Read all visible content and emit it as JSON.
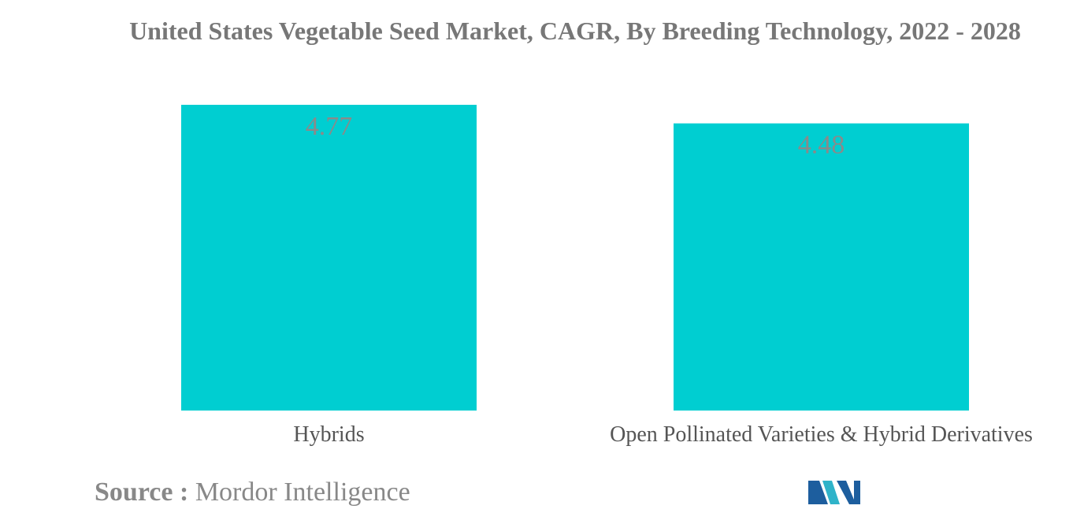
{
  "chart_data": {
    "type": "bar",
    "title": "United States Vegetable Seed Market, CAGR, By Breeding Technology, 2022 - 2028",
    "categories": [
      "Hybrids",
      "Open Pollinated Varieties & Hybrid Derivatives"
    ],
    "values": [
      4.77,
      4.48
    ],
    "value_labels": [
      "4.77",
      "4.48"
    ],
    "ylim": [
      0,
      4.77
    ],
    "grid": false,
    "legend": "none",
    "bar_color": "#00CED1"
  },
  "source": {
    "key": "Source :",
    "value": "Mordor Intelligence"
  },
  "logo": {
    "icon": "mordor-intelligence-logo-icon",
    "colors": [
      "#1D5E9E",
      "#2FB3C9"
    ]
  }
}
